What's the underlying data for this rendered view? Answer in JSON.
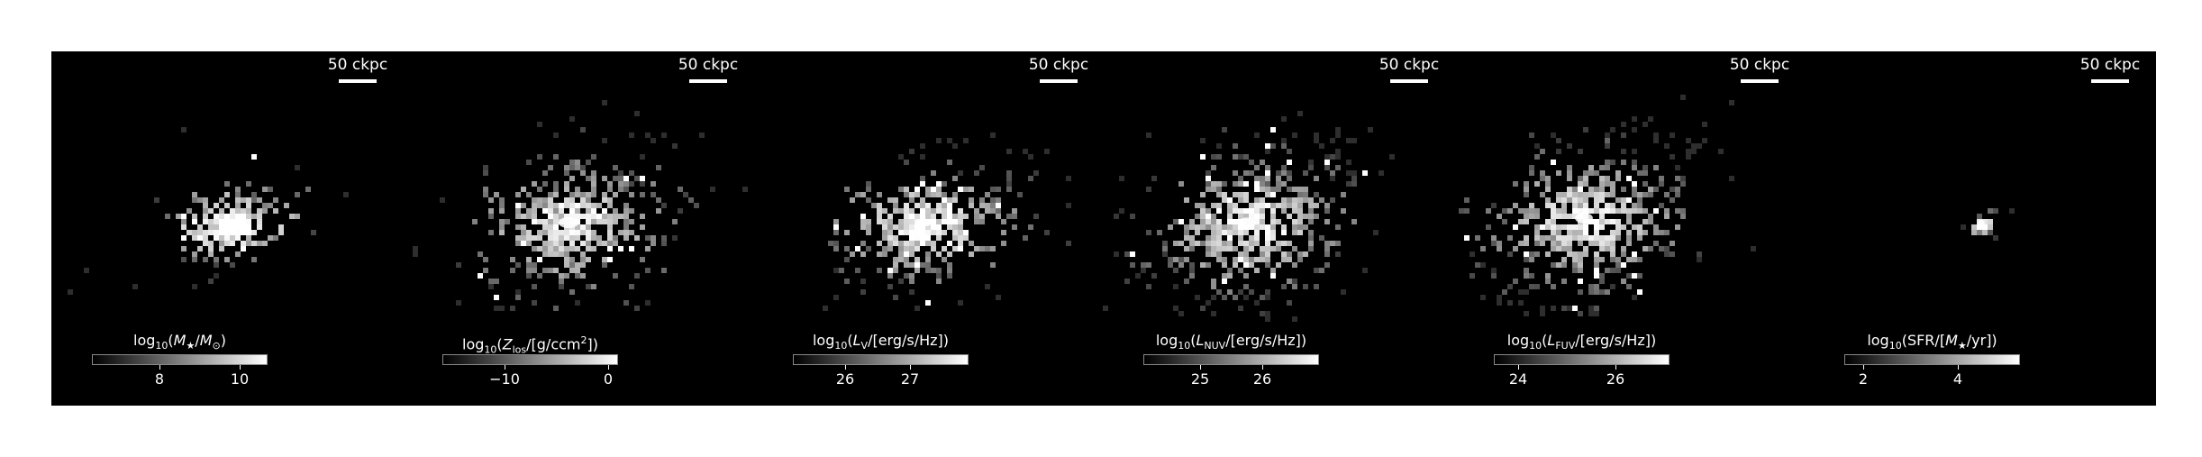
{
  "panels": [
    {
      "scale_label": "50 ckpc",
      "colorbar": {
        "label_html": "log<sub style=\"font-size:11px\">10</sub>(<i>M</i><sub style=\"font-size:11px\">★</sub>/<i>M</i><sub style=\"font-size:11px\">⊙</sub>)",
        "range": [
          6.3,
          10.7
        ],
        "ticks": [
          {
            "value": 8,
            "label": "8"
          },
          {
            "value": 10,
            "label": "10"
          }
        ]
      }
    },
    {
      "scale_label": "50 ckpc",
      "colorbar": {
        "label_html": "log<sub style=\"font-size:11px\">10</sub>(<i>Z</i><sub style=\"font-size:11px\">los</sub>/[g/ccm<sup style=\"font-size:11px\">2</sup>])",
        "range": [
          -16,
          1
        ],
        "ticks": [
          {
            "value": -10,
            "label": "−10"
          },
          {
            "value": 0,
            "label": "0"
          }
        ]
      }
    },
    {
      "scale_label": "50 ckpc",
      "colorbar": {
        "label_html": "log<sub style=\"font-size:11px\">10</sub>(<i>L</i><sub style=\"font-size:11px\">V</sub>/[erg/s/Hz])",
        "range": [
          25.2,
          27.9
        ],
        "ticks": [
          {
            "value": 26,
            "label": "26"
          },
          {
            "value": 27,
            "label": "27"
          }
        ]
      }
    },
    {
      "scale_label": "50 ckpc",
      "colorbar": {
        "label_html": "log<sub style=\"font-size:11px\">10</sub>(<i>L</i><sub style=\"font-size:11px\">NUV</sub>/[erg/s/Hz])",
        "range": [
          24.1,
          26.9
        ],
        "ticks": [
          {
            "value": 25,
            "label": "25"
          },
          {
            "value": 26,
            "label": "26"
          }
        ]
      }
    },
    {
      "scale_label": "50 ckpc",
      "colorbar": {
        "label_html": "log<sub style=\"font-size:11px\">10</sub>(<i>L</i><sub style=\"font-size:11px\">FUV</sub>/[erg/s/Hz])",
        "range": [
          23.5,
          27.1
        ],
        "ticks": [
          {
            "value": 24,
            "label": "24"
          },
          {
            "value": 26,
            "label": "26"
          }
        ]
      }
    },
    {
      "scale_label": "50 ckpc",
      "colorbar": {
        "label_html": "log<sub style=\"font-size:11px\">10</sub>(SFR/[<i>M</i><sub style=\"font-size:11px\">★</sub>/yr])",
        "range": [
          1.6,
          5.3
        ],
        "ticks": [
          {
            "value": 2,
            "label": "2"
          },
          {
            "value": 4,
            "label": "4"
          }
        ]
      }
    }
  ]
}
